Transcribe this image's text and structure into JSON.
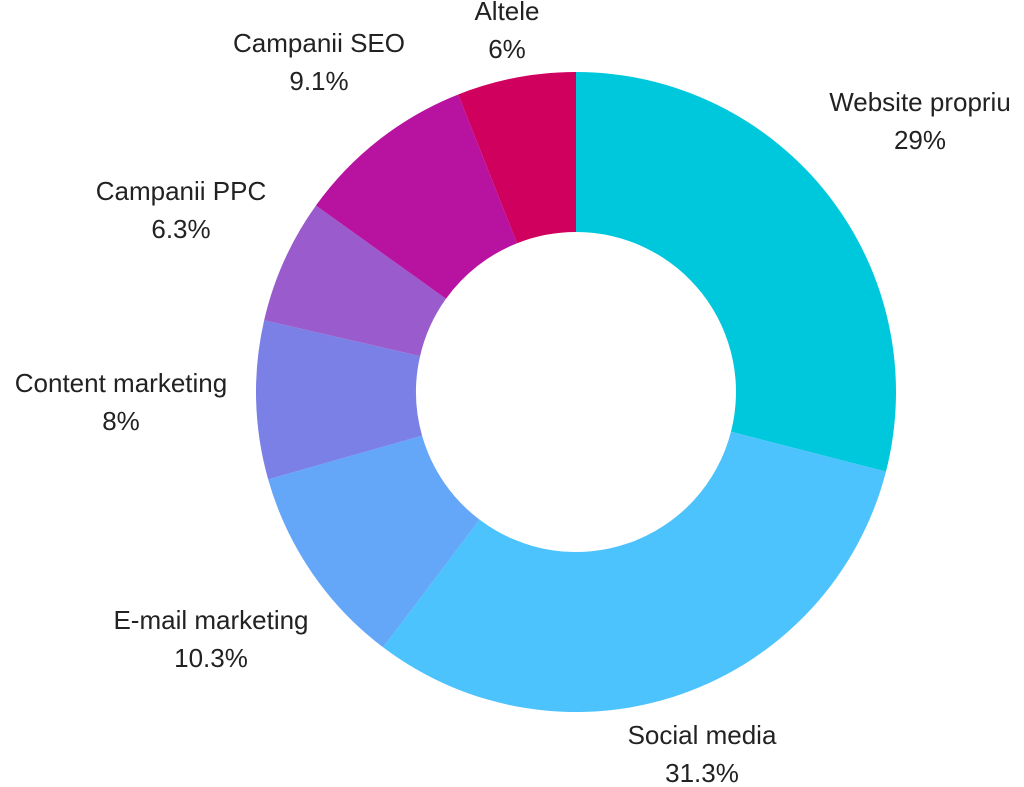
{
  "chart_data": {
    "type": "pie",
    "donut": true,
    "title": "",
    "slices": [
      {
        "label": "Website propriu",
        "value": 29.0,
        "value_label": "29%",
        "color": "#00c8dc"
      },
      {
        "label": "Social media",
        "value": 31.3,
        "value_label": "31.3%",
        "color": "#4cc3fc"
      },
      {
        "label": "E-mail marketing",
        "value": 10.3,
        "value_label": "10.3%",
        "color": "#64a6f8"
      },
      {
        "label": "Content marketing",
        "value": 8.0,
        "value_label": "8%",
        "color": "#7b80e6"
      },
      {
        "label": "Campanii PPC",
        "value": 6.3,
        "value_label": "6.3%",
        "color": "#9a5ccc"
      },
      {
        "label": "Campanii SEO",
        "value": 9.1,
        "value_label": "9.1%",
        "color": "#b812a0"
      },
      {
        "label": "Altele",
        "value": 6.0,
        "value_label": "6%",
        "color": "#d0005e"
      }
    ]
  }
}
